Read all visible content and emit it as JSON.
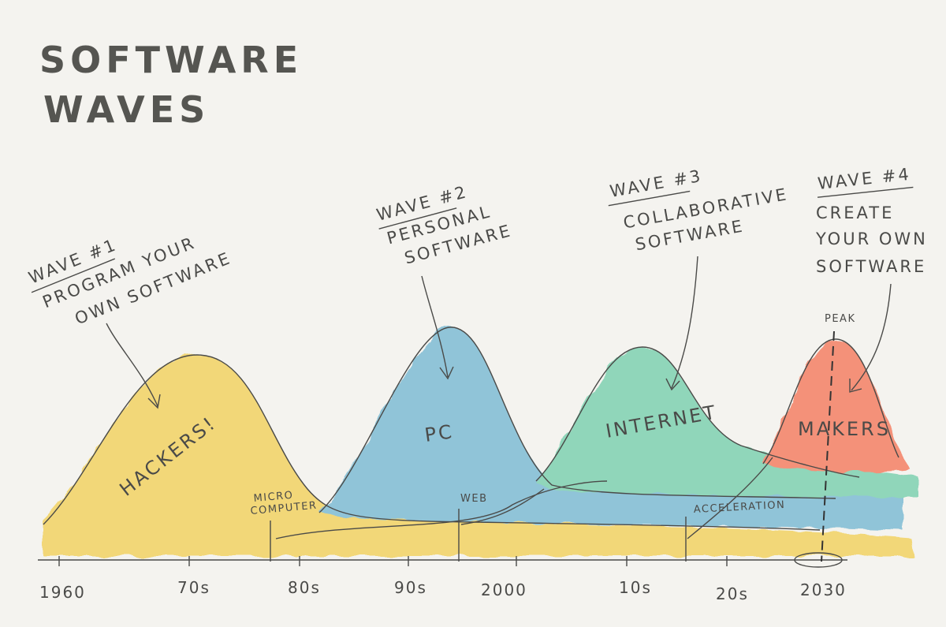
{
  "title": {
    "line1": "SOFTWARE",
    "line2": "WAVES"
  },
  "waves": [
    {
      "heading": "WAVE #1",
      "desc1": "PROGRAM YOUR",
      "desc2": "OWN SOFTWARE",
      "label": "HACKERS!",
      "color": "#f2d56c"
    },
    {
      "heading": "WAVE #2",
      "desc1": "PERSONAL",
      "desc2": "SOFTWARE",
      "label": "PC",
      "color": "#86bfd6"
    },
    {
      "heading": "WAVE #3",
      "desc1": "COLLABORATIVE",
      "desc2": "SOFTWARE",
      "label": "INTERNET",
      "color": "#86d3b5"
    },
    {
      "heading": "WAVE #4",
      "desc1": "CREATE",
      "desc2": "YOUR OWN",
      "desc3": "SOFTWARE",
      "label": "MAKERS",
      "color": "#f5876d"
    }
  ],
  "markers": {
    "micro1": "MICRO",
    "micro2": "COMPUTER",
    "web": "WEB",
    "acceleration": "ACCELERATION",
    "peak": "PEAK"
  },
  "axis": [
    "1960",
    "70s",
    "80s",
    "90s",
    "2000",
    "10s",
    "20s",
    "2030"
  ]
}
